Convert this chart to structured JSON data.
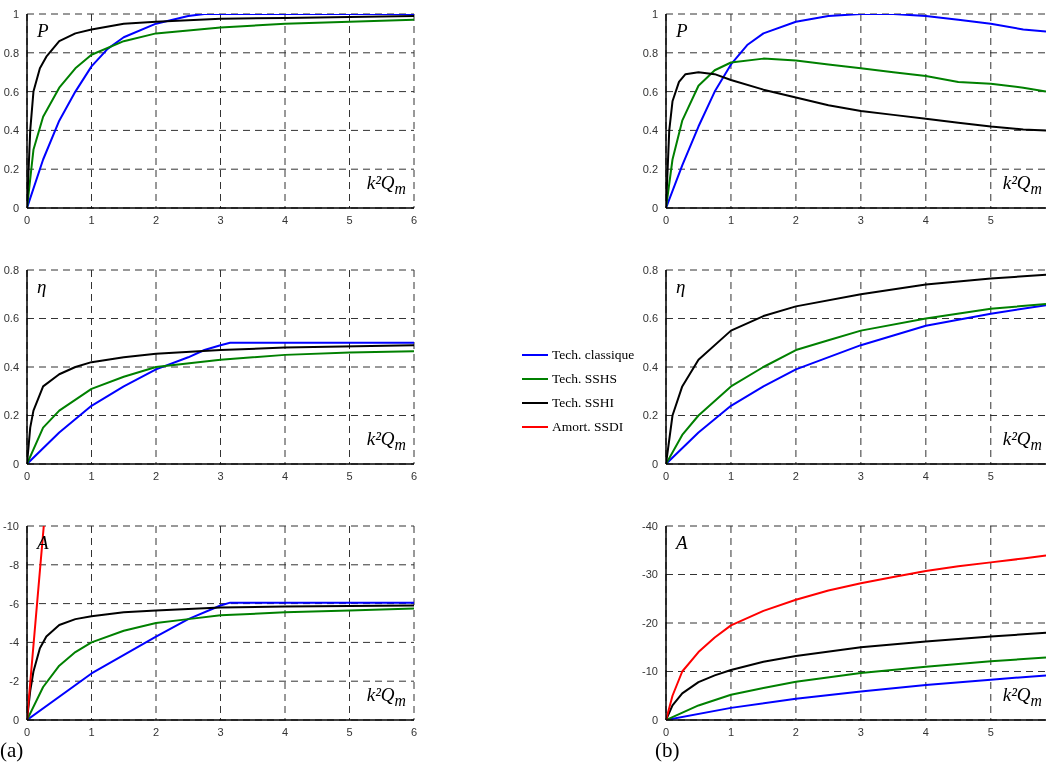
{
  "chart_data": [
    {
      "type": "line",
      "ylabel": "P",
      "xlabel": "k²Q$_{m}$",
      "xlim": [
        0,
        6
      ],
      "xticks": [
        0,
        1,
        2,
        3,
        4,
        5,
        6
      ],
      "ylim": [
        0,
        1
      ],
      "yticks": [
        0,
        0.2,
        0.4,
        0.6,
        0.8,
        1
      ],
      "grid": true,
      "line_style": "solid",
      "series": [
        {
          "color": "#0000ff",
          "x": [
            0,
            0.25,
            0.5,
            0.75,
            1,
            1.25,
            1.5,
            2,
            2.5,
            2.75,
            3,
            6
          ],
          "values": [
            0,
            0.25,
            0.45,
            0.6,
            0.73,
            0.82,
            0.88,
            0.95,
            0.99,
            1,
            1,
            1
          ]
        },
        {
          "color": "#008000",
          "x": [
            0,
            0.1,
            0.25,
            0.5,
            0.75,
            1,
            1.5,
            2,
            3,
            4,
            5,
            6
          ],
          "values": [
            0,
            0.3,
            0.47,
            0.62,
            0.72,
            0.79,
            0.86,
            0.9,
            0.93,
            0.95,
            0.96,
            0.97
          ]
        },
        {
          "color": "#000000",
          "x": [
            0,
            0.05,
            0.1,
            0.2,
            0.3,
            0.5,
            0.75,
            1,
            1.5,
            2,
            3,
            4,
            6
          ],
          "values": [
            0,
            0.4,
            0.6,
            0.72,
            0.78,
            0.86,
            0.9,
            0.92,
            0.95,
            0.96,
            0.975,
            0.98,
            0.99
          ]
        }
      ]
    },
    {
      "type": "line",
      "ylabel": "P",
      "xlabel": "k²Q$_{m}$",
      "xlim": [
        0,
        5.85
      ],
      "xticks": [
        0,
        1,
        2,
        3,
        4,
        5
      ],
      "ylim": [
        0,
        1
      ],
      "yticks": [
        0,
        0.2,
        0.4,
        0.6,
        0.8,
        1
      ],
      "grid": true,
      "line_style": "solid",
      "series": [
        {
          "color": "#0000ff",
          "x": [
            0,
            0.25,
            0.5,
            0.75,
            1,
            1.25,
            1.5,
            2,
            2.5,
            3,
            3.5,
            4,
            4.5,
            5,
            5.5,
            5.85
          ],
          "values": [
            0,
            0.22,
            0.42,
            0.6,
            0.74,
            0.84,
            0.9,
            0.96,
            0.99,
            1,
            1,
            0.99,
            0.97,
            0.95,
            0.92,
            0.91
          ]
        },
        {
          "color": "#008000",
          "x": [
            0,
            0.1,
            0.25,
            0.5,
            0.75,
            1,
            1.5,
            2,
            2.5,
            3,
            3.5,
            4,
            4.5,
            5,
            5.5,
            5.85
          ],
          "values": [
            0,
            0.25,
            0.45,
            0.63,
            0.71,
            0.75,
            0.77,
            0.76,
            0.74,
            0.72,
            0.7,
            0.68,
            0.65,
            0.64,
            0.62,
            0.6
          ]
        },
        {
          "color": "#000000",
          "x": [
            0,
            0.05,
            0.1,
            0.2,
            0.3,
            0.5,
            0.75,
            1,
            1.5,
            2,
            2.5,
            3,
            3.5,
            4,
            4.5,
            5,
            5.5,
            5.85
          ],
          "values": [
            0,
            0.4,
            0.55,
            0.65,
            0.69,
            0.7,
            0.69,
            0.66,
            0.61,
            0.57,
            0.53,
            0.5,
            0.48,
            0.46,
            0.44,
            0.42,
            0.405,
            0.4
          ]
        }
      ]
    },
    {
      "type": "line",
      "ylabel": "η",
      "xlabel": "k²Q$_{m}$",
      "xlim": [
        0,
        6
      ],
      "xticks": [
        0,
        1,
        2,
        3,
        4,
        5,
        6
      ],
      "ylim": [
        0,
        0.8
      ],
      "yticks": [
        0,
        0.2,
        0.4,
        0.6,
        0.8
      ],
      "grid": true,
      "line_style": "solid",
      "series": [
        {
          "color": "#0000ff",
          "x": [
            0,
            0.5,
            1,
            1.5,
            2,
            2.5,
            2.75,
            3,
            3.15,
            6
          ],
          "values": [
            0,
            0.13,
            0.24,
            0.32,
            0.39,
            0.44,
            0.47,
            0.49,
            0.5,
            0.5
          ]
        },
        {
          "color": "#008000",
          "x": [
            0,
            0.25,
            0.5,
            1,
            1.5,
            2,
            3,
            4,
            5,
            6
          ],
          "values": [
            0,
            0.15,
            0.22,
            0.31,
            0.36,
            0.4,
            0.43,
            0.45,
            0.46,
            0.465
          ]
        },
        {
          "color": "#000000",
          "x": [
            0,
            0.05,
            0.1,
            0.25,
            0.5,
            0.75,
            1,
            1.5,
            2,
            3,
            4,
            6
          ],
          "values": [
            0,
            0.15,
            0.22,
            0.32,
            0.37,
            0.4,
            0.42,
            0.44,
            0.455,
            0.47,
            0.48,
            0.49
          ]
        }
      ]
    },
    {
      "type": "line",
      "ylabel": "η",
      "xlabel": "k²Q$_{m}$",
      "xlim": [
        0,
        5.85
      ],
      "xticks": [
        0,
        1,
        2,
        3,
        4,
        5
      ],
      "ylim": [
        0,
        0.8
      ],
      "yticks": [
        0,
        0.2,
        0.4,
        0.6,
        0.8
      ],
      "grid": true,
      "line_style": "solid",
      "series": [
        {
          "color": "#0000ff",
          "x": [
            0,
            0.5,
            1,
            1.5,
            2,
            3,
            3.5,
            4,
            5,
            5.85
          ],
          "values": [
            0,
            0.13,
            0.24,
            0.32,
            0.39,
            0.49,
            0.53,
            0.57,
            0.62,
            0.655
          ]
        },
        {
          "color": "#008000",
          "x": [
            0,
            0.25,
            0.5,
            1,
            1.5,
            2,
            2.5,
            3,
            4,
            5,
            5.85
          ],
          "values": [
            0,
            0.12,
            0.2,
            0.32,
            0.4,
            0.47,
            0.51,
            0.55,
            0.6,
            0.64,
            0.66
          ]
        },
        {
          "color": "#000000",
          "x": [
            0,
            0.1,
            0.25,
            0.5,
            1,
            1.5,
            2,
            3,
            4,
            5,
            5.85
          ],
          "values": [
            0,
            0.2,
            0.32,
            0.43,
            0.55,
            0.61,
            0.65,
            0.7,
            0.74,
            0.765,
            0.78
          ]
        }
      ]
    },
    {
      "type": "line",
      "ylabel": "A",
      "xlabel": "k²Q$_{m}$",
      "xlim": [
        0,
        6
      ],
      "xticks": [
        0,
        1,
        2,
        3,
        4,
        5,
        6
      ],
      "ylim": [
        0,
        -10
      ],
      "yticks": [
        0,
        -2,
        -4,
        -6,
        -8,
        -10
      ],
      "grid": true,
      "line_style": "solid",
      "legend": "right",
      "annotations": [
        "(a)"
      ],
      "series": [
        {
          "name": "Tech. classique",
          "color": "#0000ff",
          "x": [
            0,
            1,
            2,
            2.5,
            3,
            3.15,
            6
          ],
          "values": [
            0,
            -2.4,
            -4.3,
            -5.2,
            -5.9,
            -6.05,
            -6.05
          ]
        },
        {
          "name": "Tech. SSHS",
          "color": "#008000",
          "x": [
            0,
            0.25,
            0.5,
            0.75,
            1,
            1.5,
            2,
            2.5,
            3,
            4,
            5,
            6
          ],
          "values": [
            0,
            -1.7,
            -2.8,
            -3.5,
            -4,
            -4.6,
            -5,
            -5.2,
            -5.4,
            -5.55,
            -5.65,
            -5.75
          ]
        },
        {
          "name": "Tech. SSHI",
          "color": "#000000",
          "x": [
            0,
            0.05,
            0.1,
            0.2,
            0.3,
            0.5,
            0.75,
            1,
            1.5,
            2,
            3,
            4,
            6
          ],
          "values": [
            0,
            -1.5,
            -2.5,
            -3.7,
            -4.3,
            -4.9,
            -5.2,
            -5.35,
            -5.55,
            -5.65,
            -5.8,
            -5.85,
            -5.9
          ]
        },
        {
          "name": "Amort. SSDI",
          "color": "#ff0000",
          "x": [
            0,
            0.13,
            0.26
          ],
          "values": [
            0,
            -5,
            -10
          ]
        }
      ]
    },
    {
      "type": "line",
      "ylabel": "A",
      "xlabel": "k²Q$_{m}$",
      "xlim": [
        0,
        5.85
      ],
      "xticks": [
        0,
        1,
        2,
        3,
        4,
        5
      ],
      "ylim": [
        0,
        -40
      ],
      "yticks": [
        0,
        -10,
        -20,
        -30,
        -40
      ],
      "grid": true,
      "line_style": "solid",
      "annotations": [
        "(b)"
      ],
      "series": [
        {
          "color": "#0000ff",
          "x": [
            0,
            1,
            2,
            3,
            4,
            5,
            5.85
          ],
          "values": [
            0,
            -2.5,
            -4.4,
            -5.9,
            -7.2,
            -8.3,
            -9.2
          ]
        },
        {
          "color": "#008000",
          "x": [
            0,
            0.5,
            1,
            1.5,
            2,
            3,
            4,
            5,
            5.85
          ],
          "values": [
            0,
            -3,
            -5.2,
            -6.6,
            -7.9,
            -9.7,
            -11,
            -12.1,
            -12.9
          ]
        },
        {
          "color": "#000000",
          "x": [
            0,
            0.1,
            0.25,
            0.5,
            0.75,
            1,
            1.5,
            2,
            3,
            4,
            5,
            5.85
          ],
          "values": [
            0,
            -3,
            -5.5,
            -7.8,
            -9.2,
            -10.3,
            -12,
            -13.2,
            -15,
            -16.2,
            -17.2,
            -18
          ]
        },
        {
          "color": "#ff0000",
          "x": [
            0,
            0.1,
            0.25,
            0.5,
            0.75,
            1,
            1.5,
            2,
            2.5,
            3,
            3.5,
            4,
            4.5,
            5,
            5.5,
            5.85
          ],
          "values": [
            0,
            -5,
            -10,
            -14,
            -17,
            -19.5,
            -22.5,
            -24.8,
            -26.7,
            -28.2,
            -29.5,
            -30.7,
            -31.7,
            -32.5,
            -33.3,
            -33.9
          ]
        }
      ]
    }
  ]
}
